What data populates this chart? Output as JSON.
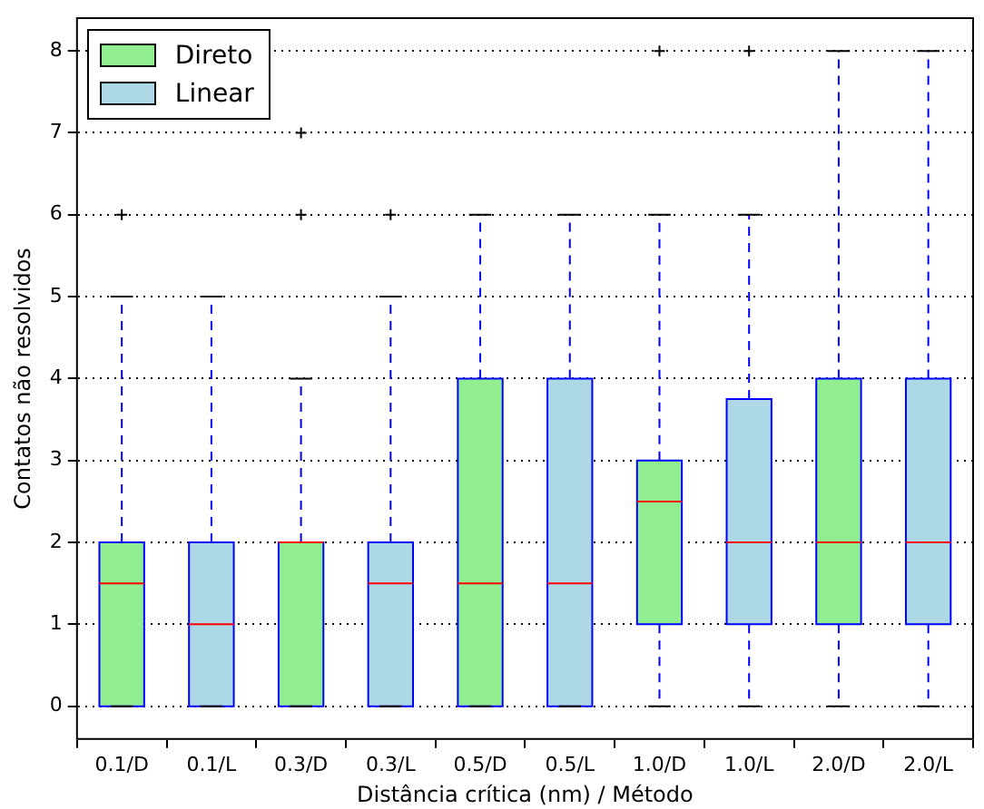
{
  "chart_data": {
    "type": "box",
    "xlabel": "Distância crítica (nm) / Método",
    "ylabel": "Contatos não resolvidos",
    "categories": [
      "0.1/D",
      "0.1/L",
      "0.3/D",
      "0.3/L",
      "0.5/D",
      "0.5/L",
      "1.0/D",
      "1.0/L",
      "2.0/D",
      "2.0/L"
    ],
    "ylim": [
      -0.4,
      8.4
    ],
    "yticks": [
      0,
      1,
      2,
      3,
      4,
      5,
      6,
      7,
      8
    ],
    "grid": "y",
    "legend": "top left",
    "marker": "cross",
    "series": [
      {
        "name": "Direto",
        "color": "#90ee90",
        "boxes": [
          {
            "low": 0,
            "q1": 0,
            "median": 1.5,
            "q3": 2,
            "high": 5,
            "outliers": [
              6
            ]
          },
          null,
          {
            "low": 0,
            "q1": 0,
            "median": 2,
            "q3": 2,
            "high": 4,
            "outliers": [
              6,
              7
            ]
          },
          null,
          {
            "low": 0,
            "q1": 0,
            "median": 1.5,
            "q3": 4,
            "high": 6
          },
          null,
          {
            "low": 0,
            "q1": 1,
            "median": 2.5,
            "q3": 3,
            "high": 6,
            "outliers": [
              8
            ]
          },
          null,
          {
            "low": 0,
            "q1": 1,
            "median": 2,
            "q3": 4,
            "high": 8
          },
          null
        ]
      },
      {
        "name": "Linear",
        "color": "#add8e6",
        "boxes": [
          null,
          {
            "low": 0,
            "q1": 0,
            "median": 1,
            "q3": 2,
            "high": 5
          },
          null,
          {
            "low": 0,
            "q1": 0,
            "median": 1.5,
            "q3": 2,
            "high": 5,
            "outliers": [
              6
            ]
          },
          null,
          {
            "low": 0,
            "q1": 0,
            "median": 1.5,
            "q3": 4,
            "high": 6
          },
          null,
          {
            "low": 0,
            "q1": 1,
            "median": 2,
            "q3": 3.75,
            "high": 6,
            "outliers": [
              8
            ]
          },
          null,
          {
            "low": 0,
            "q1": 1,
            "median": 2,
            "q3": 4,
            "high": 8
          }
        ]
      }
    ]
  }
}
